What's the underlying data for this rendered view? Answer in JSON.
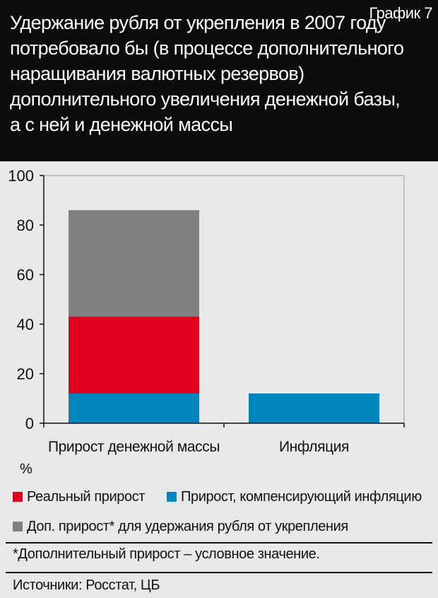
{
  "header": {
    "graph_number": "График 7",
    "title": "Удержание рубля от укрепления в 2007 году потребовало бы (в процессе дополнительного наращивания валютных резервов) дополнительного увеличения денежной базы, а с ней и денежной массы"
  },
  "chart_data": {
    "type": "bar",
    "stacked": true,
    "categories": [
      "Прирост денежной массы",
      "Инфляция"
    ],
    "series": [
      {
        "name": "Прирост, компенсирующий инфляцию",
        "color": "#0086bf",
        "values": [
          12,
          12
        ]
      },
      {
        "name": "Реальный прирост",
        "color": "#e1001e",
        "values": [
          31,
          0
        ]
      },
      {
        "name": "Доп. прирост* для удержания рубля от укрепления",
        "color": "#808080",
        "values": [
          43,
          0
        ]
      }
    ],
    "ylim": [
      0,
      100
    ],
    "yticks": [
      0,
      20,
      40,
      60,
      80,
      100
    ],
    "ylabel": "%",
    "grid": false
  },
  "legend": {
    "items": [
      {
        "label": "Реальный прирост",
        "color": "#e1001e"
      },
      {
        "label": "Прирост, компенсирующий инфляцию",
        "color": "#0086bf"
      },
      {
        "label": "Доп. прирост* для удержания рубля от укрепления",
        "color": "#808080"
      }
    ]
  },
  "notes": {
    "footnote": "*Дополнительный прирост – условное значение.",
    "sources": "Источники: Росстат, ЦБ"
  }
}
